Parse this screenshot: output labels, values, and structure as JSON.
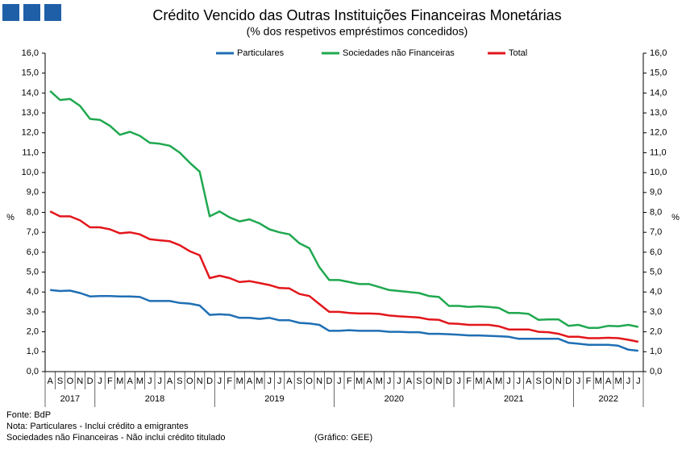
{
  "chart_data": {
    "type": "line",
    "title": "Crédito Vencido das Outras Instituições Financeiras Monetárias",
    "subtitle": "(% dos respetivos empréstimos concedidos)",
    "y_label": "%",
    "y2_label": "%",
    "categories": [
      "A",
      "S",
      "O",
      "N",
      "D",
      "J",
      "F",
      "M",
      "A",
      "M",
      "J",
      "J",
      "A",
      "S",
      "O",
      "N",
      "D",
      "J",
      "F",
      "M",
      "A",
      "M",
      "J",
      "J",
      "A",
      "S",
      "O",
      "N",
      "D",
      "J",
      "F",
      "M",
      "A",
      "M",
      "J",
      "J",
      "A",
      "S",
      "O",
      "N",
      "D",
      "J",
      "F",
      "M",
      "A",
      "M",
      "J",
      "J",
      "A",
      "S",
      "O",
      "N",
      "D",
      "J",
      "F",
      "M",
      "A",
      "M",
      "J",
      "J"
    ],
    "year_groups": [
      {
        "label": "2017",
        "months": 5
      },
      {
        "label": "2018",
        "months": 12
      },
      {
        "label": "2019",
        "months": 12
      },
      {
        "label": "2020",
        "months": 12
      },
      {
        "label": "2021",
        "months": 12
      },
      {
        "label": "2022",
        "months": 7
      }
    ],
    "series": [
      {
        "name": "Particulares",
        "color": "#1f6fb4",
        "values": [
          4.1,
          4.05,
          4.07,
          3.95,
          3.78,
          3.8,
          3.8,
          3.78,
          3.78,
          3.75,
          3.55,
          3.55,
          3.55,
          3.45,
          3.42,
          3.32,
          2.85,
          2.88,
          2.85,
          2.7,
          2.7,
          2.65,
          2.7,
          2.58,
          2.58,
          2.45,
          2.42,
          2.35,
          2.05,
          2.05,
          2.08,
          2.05,
          2.05,
          2.05,
          2.0,
          2.0,
          1.98,
          1.98,
          1.9,
          1.9,
          1.88,
          1.85,
          1.82,
          1.82,
          1.8,
          1.78,
          1.75,
          1.65,
          1.65,
          1.65,
          1.65,
          1.65,
          1.45,
          1.4,
          1.35,
          1.35,
          1.35,
          1.3,
          1.1,
          1.05
        ]
      },
      {
        "name": "Sociedades não Financeiras",
        "color": "#1fa84f",
        "values": [
          14.1,
          13.65,
          13.7,
          13.35,
          12.7,
          12.65,
          12.35,
          11.9,
          12.05,
          11.85,
          11.5,
          11.45,
          11.35,
          11.0,
          10.5,
          10.05,
          7.8,
          8.05,
          7.75,
          7.55,
          7.65,
          7.45,
          7.15,
          7.0,
          6.9,
          6.45,
          6.2,
          5.25,
          4.6,
          4.6,
          4.5,
          4.4,
          4.4,
          4.25,
          4.1,
          4.05,
          4.0,
          3.95,
          3.8,
          3.75,
          3.3,
          3.3,
          3.25,
          3.28,
          3.25,
          3.2,
          2.95,
          2.95,
          2.9,
          2.6,
          2.62,
          2.62,
          2.3,
          2.35,
          2.2,
          2.2,
          2.3,
          2.28,
          2.35,
          2.25
        ]
      },
      {
        "name": "Total",
        "color": "#e3161b",
        "values": [
          8.05,
          7.8,
          7.8,
          7.6,
          7.25,
          7.25,
          7.15,
          6.95,
          7.0,
          6.9,
          6.65,
          6.6,
          6.55,
          6.35,
          6.05,
          5.85,
          4.7,
          4.82,
          4.7,
          4.5,
          4.55,
          4.45,
          4.35,
          4.2,
          4.18,
          3.9,
          3.8,
          3.4,
          3.0,
          3.0,
          2.95,
          2.92,
          2.92,
          2.9,
          2.82,
          2.78,
          2.75,
          2.72,
          2.62,
          2.6,
          2.42,
          2.4,
          2.35,
          2.35,
          2.35,
          2.28,
          2.12,
          2.12,
          2.12,
          2.0,
          1.98,
          1.9,
          1.75,
          1.75,
          1.68,
          1.68,
          1.7,
          1.68,
          1.6,
          1.5
        ]
      }
    ],
    "ylim": [
      0,
      16
    ],
    "yticks": [
      {
        "value": 0,
        "label": "0,0"
      },
      {
        "value": 1,
        "label": "1,0"
      },
      {
        "value": 2,
        "label": "2,0"
      },
      {
        "value": 3,
        "label": "3,0"
      },
      {
        "value": 4,
        "label": "4,0"
      },
      {
        "value": 5,
        "label": "5,0"
      },
      {
        "value": 6,
        "label": "6,0"
      },
      {
        "value": 7,
        "label": "7,0"
      },
      {
        "value": 8,
        "label": "8,0"
      },
      {
        "value": 9,
        "label": "9,0"
      },
      {
        "value": 10,
        "label": "10,0"
      },
      {
        "value": 11,
        "label": "11,0"
      },
      {
        "value": 12,
        "label": "12,0"
      },
      {
        "value": 13,
        "label": "13,0"
      },
      {
        "value": 14,
        "label": "14,0"
      },
      {
        "value": 15,
        "label": "15,0"
      },
      {
        "value": 16,
        "label": "16,0"
      }
    ],
    "y2lim": [
      0,
      16
    ],
    "y2ticks": [
      {
        "value": 0,
        "label": "0,0"
      },
      {
        "value": 1,
        "label": "1,0"
      },
      {
        "value": 2,
        "label": "2,0"
      },
      {
        "value": 3,
        "label": "3,0"
      },
      {
        "value": 4,
        "label": "4,0"
      },
      {
        "value": 5,
        "label": "5,0"
      },
      {
        "value": 6,
        "label": "6,0"
      },
      {
        "value": 7,
        "label": "7,0"
      },
      {
        "value": 8,
        "label": "8,0"
      },
      {
        "value": 9,
        "label": "9,0"
      },
      {
        "value": 10,
        "label": "10,0"
      },
      {
        "value": 11,
        "label": "11,0"
      },
      {
        "value": 12,
        "label": "12,0"
      },
      {
        "value": 13,
        "label": "13,0"
      },
      {
        "value": 14,
        "label": "14,0"
      },
      {
        "value": 15,
        "label": "15,0"
      },
      {
        "value": 16,
        "label": "16,0"
      }
    ],
    "grid": false,
    "legend": "top",
    "notes": [
      "Fonte: BdP",
      "Nota: Particulares - Inclui crédito a emigrantes",
      "Sociedades não Financeiras - Não inclui crédito titulado"
    ],
    "credit": "(Gráfico: GEE)"
  }
}
